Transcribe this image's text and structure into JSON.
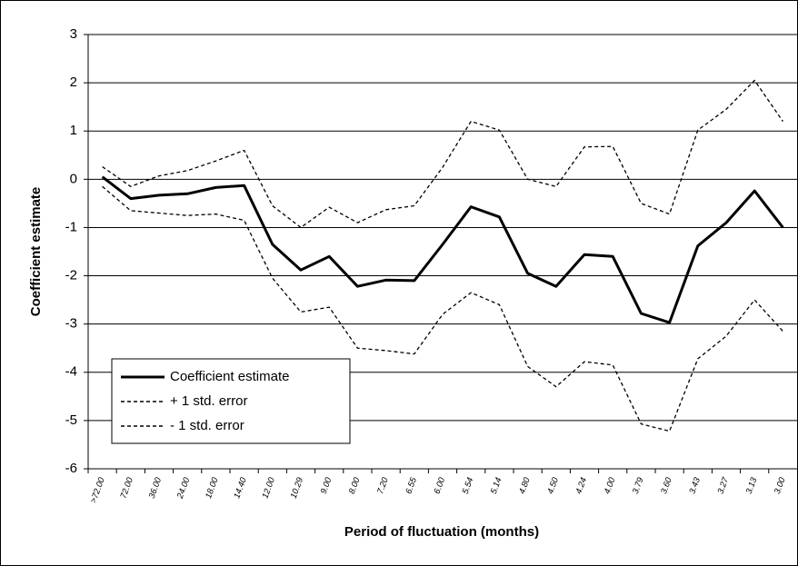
{
  "chart_data": {
    "type": "line",
    "x_label": "Period of fluctuation (months)",
    "y_label": "Coefficient estimate",
    "categories": [
      ">72.00",
      "72.00",
      "36.00",
      "24.00",
      "18.00",
      "14.40",
      "12.00",
      "10.29",
      "9.00",
      "8.00",
      "7.20",
      "6.55",
      "6.00",
      "5.54",
      "5.14",
      "4.80",
      "4.50",
      "4.24",
      "4.00",
      "3.79",
      "3.60",
      "3.43",
      "3.27",
      "3.13",
      "3.00"
    ],
    "series": [
      {
        "name": "Coefficient estimate",
        "color": "#000000",
        "dashed": false,
        "values": [
          0.05,
          -0.4,
          -0.33,
          -0.3,
          -0.17,
          -0.13,
          -1.35,
          -1.88,
          -1.6,
          -2.22,
          -2.09,
          -2.1,
          -1.35,
          -0.57,
          -0.78,
          -1.95,
          -2.22,
          -1.56,
          -1.6,
          -2.78,
          -2.97,
          -1.38,
          -0.9,
          -0.24,
          -1.0
        ]
      },
      {
        "name": "+ 1 std. error",
        "color": "#000000",
        "dashed": true,
        "values": [
          0.26,
          -0.15,
          0.07,
          0.18,
          0.38,
          0.6,
          -0.55,
          -1.0,
          -0.58,
          -0.9,
          -0.63,
          -0.55,
          0.25,
          1.2,
          1.02,
          0.0,
          -0.15,
          0.67,
          0.68,
          -0.5,
          -0.72,
          1.02,
          1.45,
          2.05,
          1.2
        ]
      },
      {
        "name": "- 1 std. error",
        "color": "#000000",
        "dashed": true,
        "values": [
          -0.15,
          -0.65,
          -0.7,
          -0.75,
          -0.72,
          -0.85,
          -2.05,
          -2.75,
          -2.65,
          -3.5,
          -3.55,
          -3.62,
          -2.8,
          -2.35,
          -2.6,
          -3.88,
          -4.3,
          -3.78,
          -3.85,
          -5.07,
          -5.22,
          -3.72,
          -3.25,
          -2.5,
          -3.15
        ]
      }
    ],
    "ylim": [
      -6,
      3
    ],
    "yticks": [
      -6,
      -5,
      -4,
      -3,
      -2,
      -1,
      0,
      1,
      2,
      3
    ],
    "grid": true,
    "legend": "lower-left"
  }
}
